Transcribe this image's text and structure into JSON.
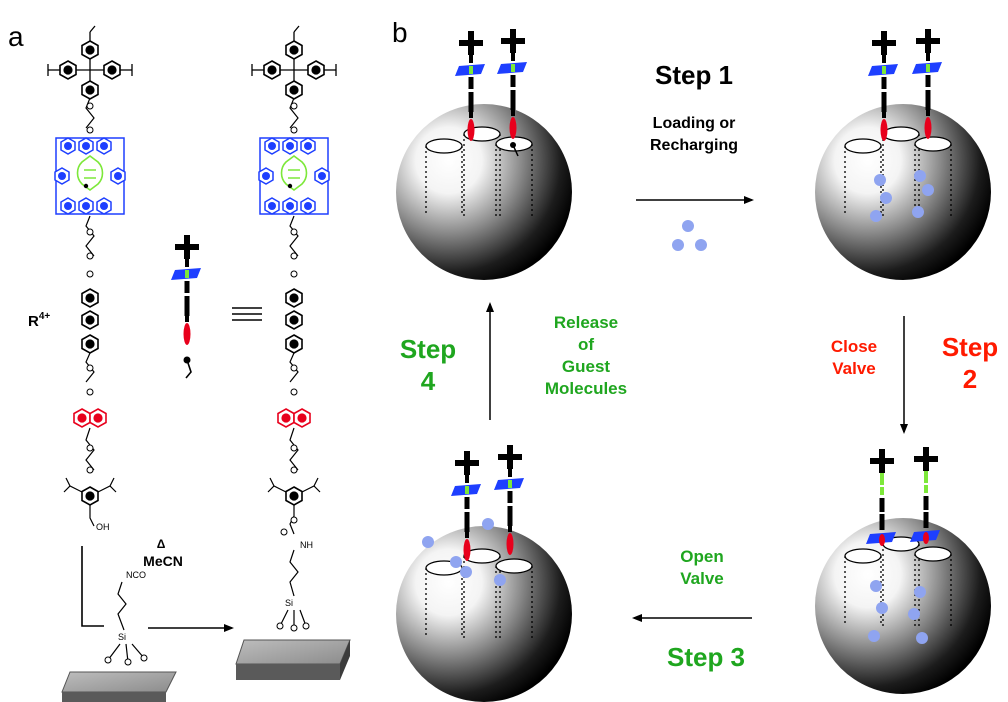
{
  "panel_a": {
    "label": "a",
    "r_label_main": "R",
    "r_label_sup": "4+",
    "delta": "Δ",
    "solvent": "MeCN",
    "atoms": {
      "oh": "OH",
      "nco": "NCO",
      "nh": "NH",
      "si": "Si",
      "o": "O",
      "plus": "+"
    }
  },
  "panel_b": {
    "label": "b",
    "step1": {
      "title": "Step 1",
      "line1": "Loading or",
      "line2": "Recharging"
    },
    "step2": {
      "line1": "Close",
      "line2": "Valve",
      "title1": "Step",
      "title2": "2"
    },
    "step3": {
      "line1": "Open",
      "line2": "Valve",
      "title": "Step 3"
    },
    "step4": {
      "title1": "Step",
      "title2": "4",
      "line1": "Release",
      "line2": "of",
      "line3": "Guest",
      "line4": "Molecules"
    }
  },
  "colors": {
    "black_step": "#000000",
    "red_step": "#ff1a00",
    "green_step": "#1fa61f",
    "ring_blue": "#1e3fff",
    "thread_green": "#7de83a",
    "stopper_red": "#e8001c",
    "guest_blue": "#8fa4f0"
  }
}
